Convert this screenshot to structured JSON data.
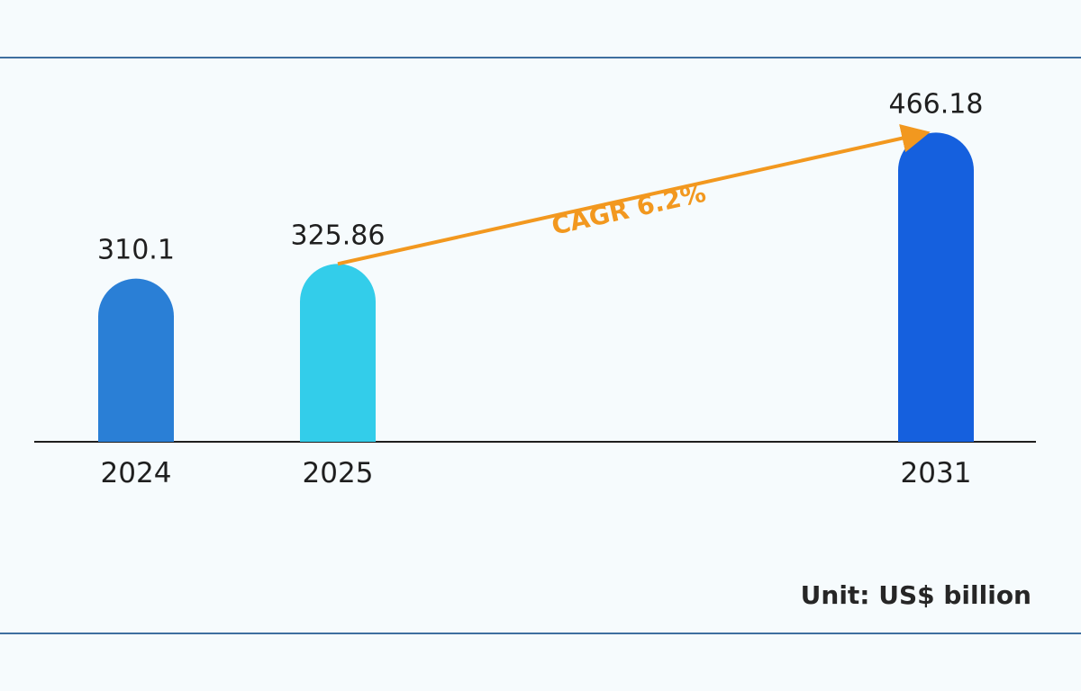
{
  "chart_data": {
    "type": "bar",
    "categories": [
      "2024",
      "2025",
      "2031"
    ],
    "values": [
      310.1,
      325.86,
      466.18
    ],
    "value_labels": [
      "310.1",
      "325.86",
      "466.18"
    ],
    "bar_colors": [
      "#2a7fd6",
      "#33cdea",
      "#1560de"
    ],
    "annotation": {
      "text": "CAGR 6.2%",
      "from": "2025",
      "to": "2031",
      "color": "#f2981f"
    },
    "unit": "Unit: US$ billion",
    "title": "",
    "xlabel": "",
    "ylabel": "",
    "grid": false,
    "legend": "none"
  }
}
